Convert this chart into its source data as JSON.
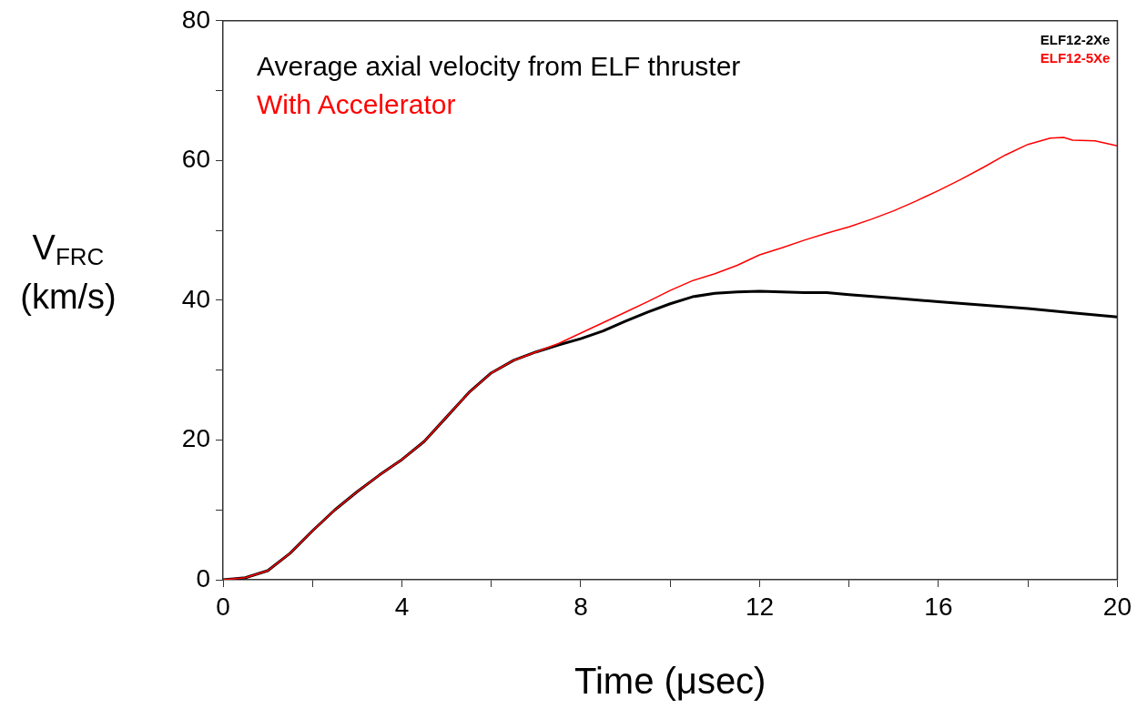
{
  "chart_data": {
    "type": "line",
    "xlabel": "Time (μsec)",
    "ylabel": "V$_{FRC}$ (km/s)",
    "annotations": [
      "Average axial velocity from ELF thruster",
      "With Accelerator"
    ],
    "xlim": [
      0,
      20
    ],
    "xticks": [
      0,
      {
        "value": 2,
        "label": null
      },
      4,
      {
        "value": 6,
        "label": null
      },
      8,
      {
        "value": 10,
        "label": null
      },
      12,
      {
        "value": 14,
        "label": null
      },
      16,
      {
        "value": 18,
        "label": null
      },
      20
    ],
    "ylim": [
      0,
      80
    ],
    "yticks": [
      0,
      {
        "value": 10,
        "label": null
      },
      20,
      {
        "value": 30,
        "label": null
      },
      40,
      {
        "value": 50,
        "label": null
      },
      60,
      {
        "value": 70,
        "label": null
      },
      80
    ],
    "grid": false,
    "legend": "top right",
    "marker": "none",
    "line_style": "solid",
    "series": [
      {
        "name": "ELF12-2Xe",
        "color": "#000000",
        "x": [
          0,
          0.5,
          1,
          1.5,
          2,
          2.5,
          3,
          3.5,
          4,
          4.5,
          5,
          5.5,
          6,
          6.5,
          7,
          7.5,
          8,
          8.5,
          9,
          9.5,
          10,
          10.5,
          11,
          11.5,
          12,
          12.5,
          13,
          13.5,
          14,
          15,
          16,
          17,
          18,
          19,
          20
        ],
        "values": [
          0,
          0.3,
          1.3,
          3.8,
          7,
          10,
          12.6,
          15,
          17.2,
          19.8,
          23.3,
          26.8,
          29.6,
          31.4,
          32.6,
          33.6,
          34.5,
          35.6,
          37,
          38.3,
          39.5,
          40.5,
          41,
          41.2,
          41.3,
          41.2,
          41.1,
          41.1,
          40.8,
          40.3,
          39.8,
          39.3,
          38.8,
          38.2,
          37.6
        ]
      },
      {
        "name": "ELF12-5Xe",
        "color": "#ff0000",
        "x": [
          0,
          0.5,
          1,
          1.5,
          2,
          2.5,
          3,
          3.5,
          4,
          4.5,
          5,
          5.5,
          6,
          6.5,
          7,
          7.5,
          8,
          8.5,
          9,
          9.5,
          10,
          10.5,
          11,
          11.5,
          12,
          12.5,
          13,
          13.5,
          14,
          14.5,
          15,
          15.5,
          16,
          16.5,
          17,
          17.5,
          18,
          18.5,
          18.8,
          19,
          19.5,
          20
        ],
        "values": [
          0,
          0.3,
          1.3,
          3.8,
          7,
          10,
          12.6,
          15,
          17.2,
          19.8,
          23.3,
          26.8,
          29.6,
          31.4,
          32.6,
          33.8,
          35.3,
          36.8,
          38.3,
          39.8,
          41.4,
          42.8,
          43.8,
          45,
          46.5,
          47.5,
          48.6,
          49.6,
          50.5,
          51.6,
          52.8,
          54.2,
          55.7,
          57.3,
          59,
          60.8,
          62.3,
          63.2,
          63.3,
          62.9,
          62.8,
          62.1
        ]
      }
    ]
  }
}
